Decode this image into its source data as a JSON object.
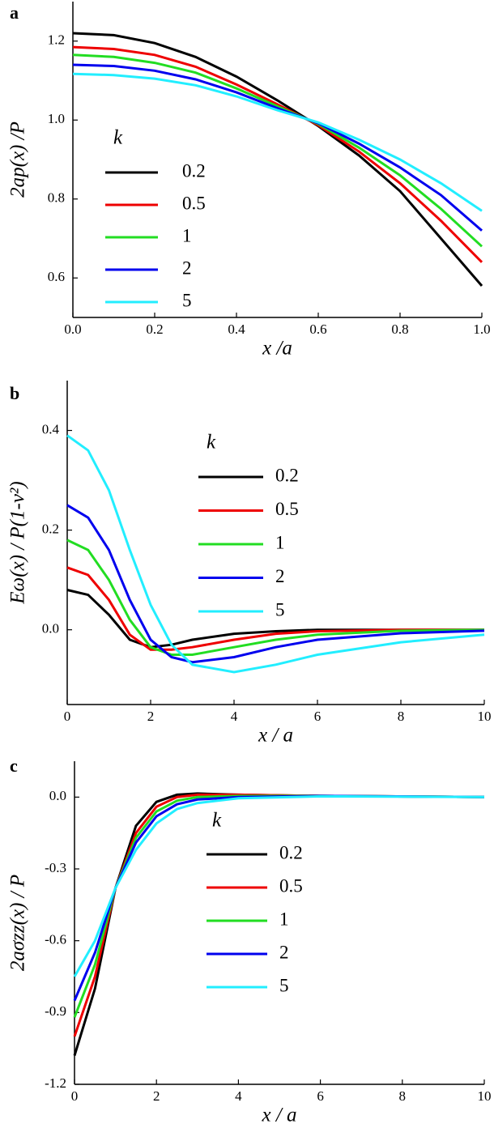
{
  "chart_data": [
    {
      "type": "line",
      "panel_label": "a",
      "xlabel": "x /a",
      "ylabel": "2ap(x) /P",
      "legend_title": "k",
      "x": [
        0,
        0.1,
        0.2,
        0.3,
        0.4,
        0.5,
        0.6,
        0.7,
        0.8,
        0.9,
        1.0
      ],
      "xlim": [
        0,
        1
      ],
      "xticks": [
        {
          "value": 0,
          "label": "0.0"
        },
        0.2,
        0.4,
        0.6,
        0.8,
        {
          "value": 1,
          "label": "1.0"
        }
      ],
      "ylim": [
        0.5,
        1.3
      ],
      "yticks": [
        0.6,
        0.8,
        {
          "value": 1,
          "label": "1.0"
        },
        1.2
      ],
      "series": [
        {
          "name": "0.2",
          "color": "#000000",
          "values": [
            1.22,
            1.215,
            1.195,
            1.16,
            1.11,
            1.05,
            0.985,
            0.91,
            0.82,
            0.7,
            0.58
          ]
        },
        {
          "name": "0.5",
          "color": "#ee0000",
          "values": [
            1.185,
            1.18,
            1.165,
            1.135,
            1.09,
            1.04,
            0.987,
            0.92,
            0.84,
            0.745,
            0.64
          ]
        },
        {
          "name": "1",
          "color": "#22dd22",
          "values": [
            1.165,
            1.16,
            1.145,
            1.12,
            1.08,
            1.035,
            0.99,
            0.93,
            0.86,
            0.775,
            0.68
          ]
        },
        {
          "name": "2",
          "color": "#0000ee",
          "values": [
            1.14,
            1.137,
            1.125,
            1.103,
            1.07,
            1.03,
            0.992,
            0.94,
            0.88,
            0.81,
            0.72
          ]
        },
        {
          "name": "5",
          "color": "#22eeff",
          "values": [
            1.117,
            1.114,
            1.105,
            1.088,
            1.06,
            1.025,
            0.994,
            0.95,
            0.9,
            0.84,
            0.77
          ]
        }
      ]
    },
    {
      "type": "line",
      "panel_label": "b",
      "xlabel": "x / a",
      "ylabel": "Eω(x) / P(1-ν²)",
      "legend_title": "k",
      "x": [
        0,
        0.5,
        1,
        1.5,
        2,
        2.5,
        3,
        4,
        5,
        6,
        8,
        10
      ],
      "xlim": [
        0,
        10
      ],
      "xticks": [
        0,
        2,
        4,
        6,
        8,
        10
      ],
      "ylim": [
        -0.15,
        0.5
      ],
      "yticks": [
        {
          "value": 0,
          "label": "0.0"
        },
        0.2,
        0.4
      ],
      "series": [
        {
          "name": "0.2",
          "color": "#000000",
          "values": [
            0.08,
            0.07,
            0.03,
            -0.02,
            -0.035,
            -0.03,
            -0.02,
            -0.008,
            -0.003,
            0,
            0,
            0
          ]
        },
        {
          "name": "0.5",
          "color": "#ee0000",
          "values": [
            0.125,
            0.11,
            0.06,
            -0.01,
            -0.04,
            -0.04,
            -0.035,
            -0.02,
            -0.008,
            -0.003,
            0,
            0
          ]
        },
        {
          "name": "1",
          "color": "#22dd22",
          "values": [
            0.18,
            0.16,
            0.1,
            0.02,
            -0.035,
            -0.05,
            -0.05,
            -0.035,
            -0.02,
            -0.01,
            -0.002,
            0
          ]
        },
        {
          "name": "2",
          "color": "#0000ee",
          "values": [
            0.25,
            0.225,
            0.16,
            0.06,
            -0.02,
            -0.055,
            -0.065,
            -0.055,
            -0.035,
            -0.02,
            -0.007,
            -0.002
          ]
        },
        {
          "name": "5",
          "color": "#22eeff",
          "values": [
            0.39,
            0.36,
            0.28,
            0.16,
            0.05,
            -0.03,
            -0.07,
            -0.085,
            -0.07,
            -0.05,
            -0.025,
            -0.01
          ]
        }
      ]
    },
    {
      "type": "line",
      "panel_label": "c",
      "xlabel": "x / a",
      "ylabel": "2aσzz(x) / P",
      "legend_title": "k",
      "x": [
        0,
        0.5,
        1,
        1.5,
        2,
        2.5,
        3,
        4,
        6,
        10
      ],
      "xlim": [
        0,
        10
      ],
      "xticks": [
        0,
        2,
        4,
        6,
        8,
        10
      ],
      "ylim": [
        -1.2,
        0.15
      ],
      "yticks": [
        -1.2,
        -0.9,
        -0.6,
        -0.3,
        {
          "value": 0,
          "label": "0.0"
        }
      ],
      "series": [
        {
          "name": "0.2",
          "color": "#000000",
          "values": [
            -1.08,
            -0.8,
            -0.38,
            -0.12,
            -0.02,
            0.01,
            0.015,
            0.01,
            0.005,
            0
          ]
        },
        {
          "name": "0.5",
          "color": "#ee0000",
          "values": [
            -1.0,
            -0.75,
            -0.38,
            -0.15,
            -0.04,
            0,
            0.01,
            0.01,
            0.005,
            0
          ]
        },
        {
          "name": "1",
          "color": "#22dd22",
          "values": [
            -0.92,
            -0.7,
            -0.38,
            -0.17,
            -0.06,
            -0.015,
            0,
            0.005,
            0.005,
            0
          ]
        },
        {
          "name": "2",
          "color": "#0000ee",
          "values": [
            -0.85,
            -0.65,
            -0.38,
            -0.19,
            -0.08,
            -0.03,
            -0.01,
            0,
            0.005,
            0
          ]
        },
        {
          "name": "5",
          "color": "#22eeff",
          "values": [
            -0.75,
            -0.6,
            -0.38,
            -0.22,
            -0.11,
            -0.05,
            -0.025,
            -0.005,
            0.003,
            0
          ]
        }
      ]
    }
  ]
}
